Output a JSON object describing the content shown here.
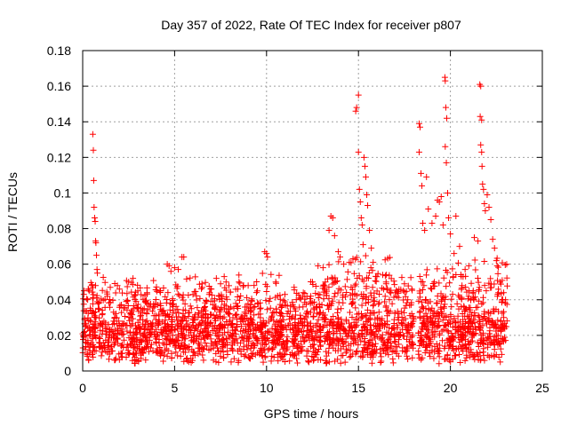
{
  "chart_data": {
    "type": "scatter",
    "title": "Day 357 of 2022, Rate Of TEC Index for receiver p807",
    "xlabel": "GPS time / hours",
    "ylabel": "ROTI / TECUs",
    "xlim": [
      0,
      25
    ],
    "ylim": [
      0,
      0.18
    ],
    "x_ticks": [
      "0",
      "5",
      "10",
      "15",
      "20",
      "25"
    ],
    "y_ticks": [
      "0",
      "0.02",
      "0.04",
      "0.06",
      "0.08",
      "0.1",
      "0.12",
      "0.14",
      "0.16",
      "0.18"
    ],
    "grid": true,
    "marker": "+",
    "marker_color": "#ff0000",
    "data_gap_hours": [
      18.0,
      18.25
    ],
    "data_range_hours": [
      0,
      23.1
    ],
    "series": [
      {
        "points": [
          [
            0.3,
            0.046
          ],
          [
            0.35,
            0.045
          ],
          [
            0.5,
            0.048
          ],
          [
            0.55,
            0.133
          ],
          [
            0.58,
            0.124
          ],
          [
            0.6,
            0.107
          ],
          [
            0.62,
            0.092
          ],
          [
            0.65,
            0.086
          ],
          [
            0.68,
            0.084
          ],
          [
            0.7,
            0.073
          ],
          [
            0.72,
            0.072
          ],
          [
            0.75,
            0.065
          ],
          [
            0.78,
            0.057
          ],
          [
            0.8,
            0.055
          ],
          [
            0.7,
            0.048
          ],
          [
            1.5,
            0.047
          ],
          [
            2.0,
            0.046
          ],
          [
            2.5,
            0.05
          ],
          [
            3.0,
            0.045
          ],
          [
            3.5,
            0.044
          ],
          [
            4.2,
            0.045
          ],
          [
            4.6,
            0.06
          ],
          [
            4.7,
            0.059
          ],
          [
            4.8,
            0.056
          ],
          [
            5.0,
            0.058
          ],
          [
            5.2,
            0.057
          ],
          [
            5.4,
            0.064
          ],
          [
            5.5,
            0.064
          ],
          [
            6.0,
            0.043
          ],
          [
            6.5,
            0.047
          ],
          [
            7.0,
            0.046
          ],
          [
            7.5,
            0.049
          ],
          [
            7.8,
            0.05
          ],
          [
            8.5,
            0.05
          ],
          [
            9.0,
            0.048
          ],
          [
            9.5,
            0.045
          ],
          [
            9.9,
            0.067
          ],
          [
            10.0,
            0.066
          ],
          [
            10.05,
            0.064
          ],
          [
            10.5,
            0.05
          ],
          [
            11.0,
            0.043
          ],
          [
            11.5,
            0.047
          ],
          [
            12.0,
            0.044
          ],
          [
            12.5,
            0.05
          ],
          [
            12.8,
            0.059
          ],
          [
            13.2,
            0.05
          ],
          [
            13.5,
            0.087
          ],
          [
            13.6,
            0.086
          ],
          [
            13.4,
            0.079
          ],
          [
            13.7,
            0.076
          ],
          [
            13.9,
            0.067
          ],
          [
            14.0,
            0.064
          ],
          [
            14.2,
            0.06
          ],
          [
            14.5,
            0.061
          ],
          [
            14.7,
            0.063
          ],
          [
            14.85,
            0.146
          ],
          [
            14.9,
            0.148
          ],
          [
            15.0,
            0.155
          ],
          [
            15.0,
            0.123
          ],
          [
            15.05,
            0.102
          ],
          [
            15.1,
            0.095
          ],
          [
            15.15,
            0.086
          ],
          [
            15.2,
            0.082
          ],
          [
            15.25,
            0.071
          ],
          [
            15.3,
            0.12
          ],
          [
            15.35,
            0.115
          ],
          [
            15.4,
            0.109
          ],
          [
            15.45,
            0.099
          ],
          [
            15.5,
            0.093
          ],
          [
            15.6,
            0.079
          ],
          [
            15.7,
            0.069
          ],
          [
            15.8,
            0.061
          ],
          [
            16.0,
            0.053
          ],
          [
            16.5,
            0.05
          ],
          [
            17.0,
            0.044
          ],
          [
            17.5,
            0.049
          ],
          [
            17.9,
            0.046
          ],
          [
            18.3,
            0.139
          ],
          [
            18.35,
            0.137
          ],
          [
            18.3,
            0.123
          ],
          [
            18.4,
            0.111
          ],
          [
            18.45,
            0.104
          ],
          [
            18.5,
            0.083
          ],
          [
            18.6,
            0.079
          ],
          [
            18.7,
            0.109
          ],
          [
            18.8,
            0.091
          ],
          [
            19.0,
            0.083
          ],
          [
            19.2,
            0.087
          ],
          [
            19.3,
            0.096
          ],
          [
            19.4,
            0.095
          ],
          [
            19.5,
            0.098
          ],
          [
            19.6,
            0.082
          ],
          [
            19.7,
            0.165
          ],
          [
            19.72,
            0.163
          ],
          [
            19.75,
            0.148
          ],
          [
            19.8,
            0.142
          ],
          [
            19.72,
            0.126
          ],
          [
            19.78,
            0.117
          ],
          [
            19.85,
            0.1
          ],
          [
            19.9,
            0.086
          ],
          [
            20.0,
            0.077
          ],
          [
            20.2,
            0.066
          ],
          [
            20.3,
            0.087
          ],
          [
            20.5,
            0.07
          ],
          [
            20.8,
            0.057
          ],
          [
            21.0,
            0.059
          ],
          [
            21.3,
            0.075
          ],
          [
            21.5,
            0.073
          ],
          [
            21.6,
            0.161
          ],
          [
            21.65,
            0.16
          ],
          [
            21.62,
            0.143
          ],
          [
            21.7,
            0.141
          ],
          [
            21.65,
            0.127
          ],
          [
            21.7,
            0.123
          ],
          [
            21.72,
            0.115
          ],
          [
            21.75,
            0.105
          ],
          [
            21.8,
            0.102
          ],
          [
            21.85,
            0.094
          ],
          [
            21.9,
            0.09
          ],
          [
            22.0,
            0.099
          ],
          [
            22.1,
            0.092
          ],
          [
            22.2,
            0.085
          ],
          [
            22.3,
            0.074
          ],
          [
            22.4,
            0.069
          ],
          [
            22.5,
            0.062
          ],
          [
            22.7,
            0.05
          ],
          [
            22.9,
            0.044
          ],
          [
            23.0,
            0.04
          ]
        ]
      }
    ]
  }
}
